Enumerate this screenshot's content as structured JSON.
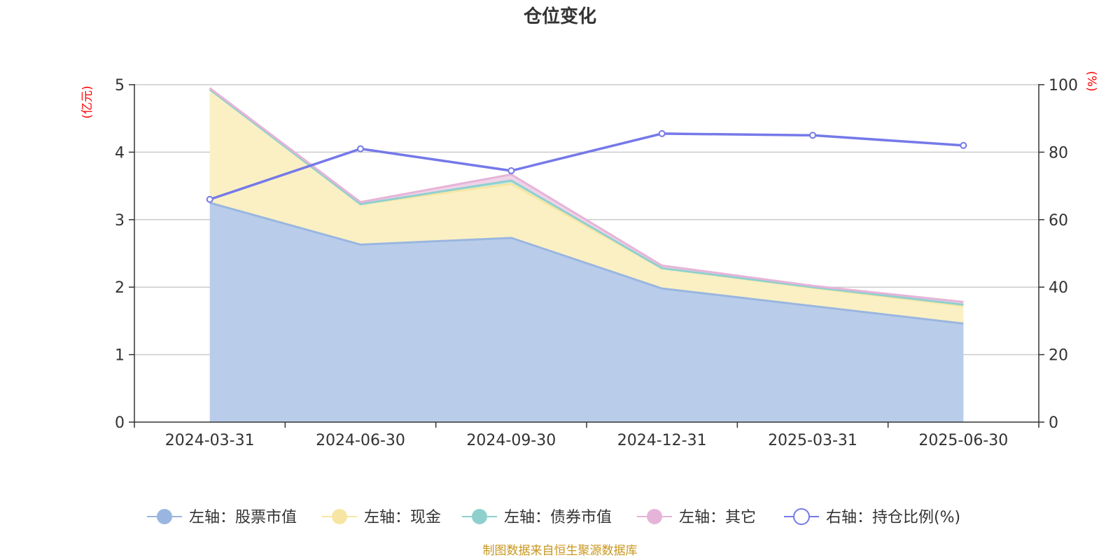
{
  "chart_data": {
    "type": "area",
    "title": "仓位变化",
    "left_unit": "(亿元)",
    "right_unit": "(%)",
    "categories": [
      "2024-03-31",
      "2024-06-30",
      "2024-09-30",
      "2024-12-31",
      "2025-03-31",
      "2025-06-30"
    ],
    "left_axis": {
      "min": 0,
      "max": 5,
      "ticks": [
        "0",
        "1",
        "2",
        "3",
        "4",
        "5"
      ]
    },
    "right_axis": {
      "min": 0,
      "max": 100,
      "ticks": [
        "0",
        "20",
        "40",
        "60",
        "80",
        "100"
      ]
    },
    "grid": true,
    "legend_position": "bottom",
    "series": [
      {
        "name": "左轴：股票市值",
        "axis": "left",
        "stacked": true,
        "color": "#9ab6e0",
        "fill": "#b9cdeb",
        "values": [
          3.25,
          2.63,
          2.73,
          1.98,
          1.72,
          1.46
        ]
      },
      {
        "name": "左轴：现金",
        "axis": "left",
        "stacked": true,
        "color": "#f7e6a3",
        "fill": "#faf0c4",
        "values": [
          1.68,
          0.6,
          0.8,
          0.3,
          0.27,
          0.26
        ]
      },
      {
        "name": "左轴：债券市值",
        "axis": "left",
        "stacked": true,
        "color": "#8fd0cf",
        "fill": "#bfe6e5",
        "values": [
          0,
          0,
          0.05,
          0,
          0.01,
          0.02
        ]
      },
      {
        "name": "左轴：其它",
        "axis": "left",
        "stacked": true,
        "color": "#e6b4d8",
        "fill": "#f0d3e8",
        "values": [
          0.02,
          0.03,
          0.09,
          0.04,
          0.02,
          0.04
        ]
      },
      {
        "name": "右轴：持仓比例(%)",
        "axis": "right",
        "type": "line",
        "color": "#7579e8",
        "values": [
          66,
          81,
          74.5,
          85.5,
          85,
          82
        ]
      }
    ],
    "source": "制图数据来自恒生聚源数据库"
  }
}
